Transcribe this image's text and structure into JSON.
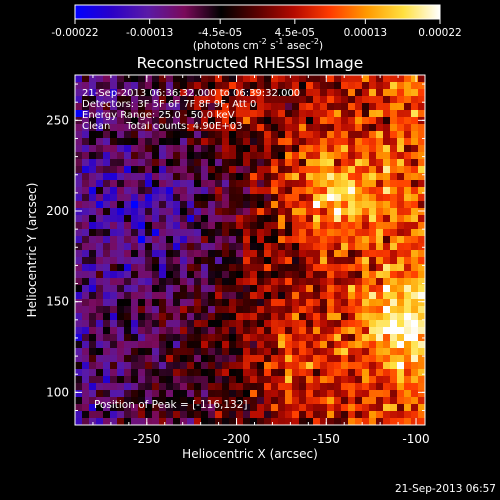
{
  "chart_data": {
    "type": "heatmap",
    "title": "Reconstructed RHESSI Image",
    "xlabel": "Heliocentric X (arcsec)",
    "ylabel": "Heliocentric Y (arcsec)",
    "xlim": [
      -290,
      -95
    ],
    "ylim": [
      82,
      275
    ],
    "x_ticks": [
      "-250",
      "-200",
      "-150",
      "-100"
    ],
    "x_tick_values": [
      -250,
      -200,
      -150,
      -100
    ],
    "y_ticks": [
      "100",
      "150",
      "200",
      "250"
    ],
    "y_tick_values": [
      100,
      150,
      200,
      250
    ],
    "colorbar": {
      "ticks": [
        "-0.00022",
        "-0.00013",
        "-4.5e-05",
        "4.5e-05",
        "0.00013",
        "0.00022"
      ],
      "tick_values": [
        -0.00022,
        -0.00013,
        -4.5e-05,
        4.5e-05,
        0.00013,
        0.00022
      ],
      "range": [
        -0.00022,
        0.00022
      ],
      "units_html": "(photons cm<tspan dy=\"-5\" font-size=\"8\">-2</tspan><tspan dy=\"5\"> s</tspan><tspan dy=\"-5\" font-size=\"8\">-1</tspan><tspan dy=\"5\"> asec</tspan><tspan dy=\"-5\" font-size=\"8\">-2</tspan><tspan dy=\"5\">)</tspan>",
      "colors": [
        "#0000ff",
        "#2a00c8",
        "#5a1aa6",
        "#7a0a5a",
        "#000000",
        "#5a0000",
        "#b40a00",
        "#ff3c00",
        "#ff9a00",
        "#ffe040",
        "#ffffff"
      ]
    },
    "annotations": [
      "21-Sep-2013 06:36:32.000 to 06:39:32.000",
      "Detectors: 3F 5F 6F 7F 8F 9F, Att 0",
      "Energy Range: 25.0 - 50.0 keV",
      "Clean     Total counts: 4.90E+03"
    ],
    "peak_label": "Position of Peak = [-116,132]",
    "peak": [
      -116,
      132
    ],
    "timestamp": "21-Sep-2013 06:57",
    "grid": false
  }
}
